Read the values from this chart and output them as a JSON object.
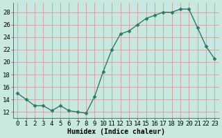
{
  "x": [
    0,
    1,
    2,
    3,
    4,
    5,
    6,
    7,
    8,
    9,
    10,
    11,
    12,
    13,
    14,
    15,
    16,
    17,
    18,
    19,
    20,
    21,
    22,
    23
  ],
  "y": [
    15,
    14,
    13,
    13,
    12.2,
    13,
    12.2,
    12,
    11.8,
    14.5,
    18.5,
    22,
    24.5,
    25,
    26,
    27,
    27.5,
    28,
    28,
    28.5,
    28.5,
    25.5,
    22.5,
    20.5
  ],
  "line_color": "#2d7a6a",
  "marker": "D",
  "marker_size": 2.5,
  "bg_color": "#c8e8e0",
  "grid_color": "#c8a0a0",
  "xlabel": "Humidex (Indice chaleur)",
  "xlabel_fontsize": 7,
  "ylabel_ticks": [
    12,
    14,
    16,
    18,
    20,
    22,
    24,
    26,
    28
  ],
  "ylim": [
    11.0,
    29.5
  ],
  "xlim": [
    -0.5,
    23.5
  ],
  "tick_fontsize": 6.5,
  "linewidth": 1.0
}
